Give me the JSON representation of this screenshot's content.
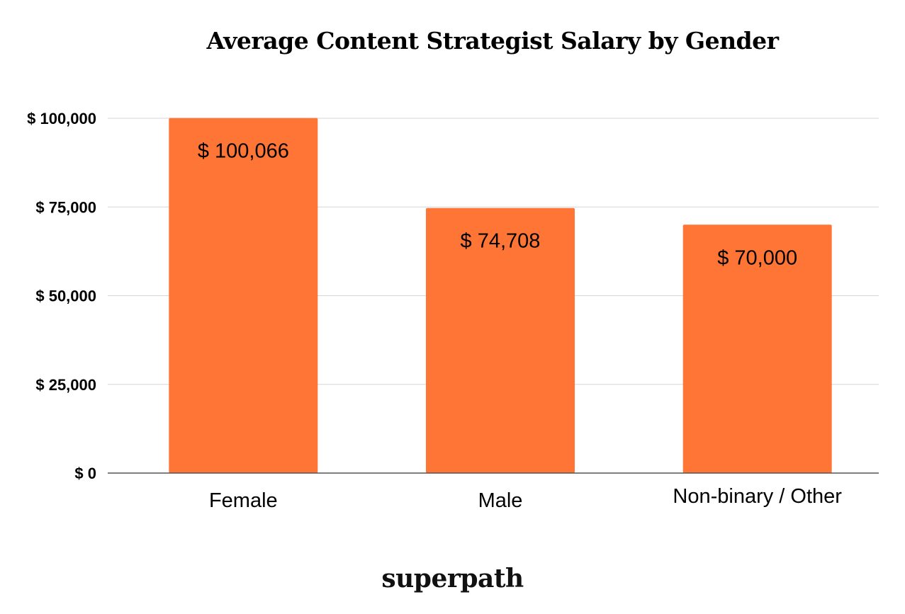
{
  "chart_data": {
    "type": "bar",
    "title": "Average Content Strategist Salary by Gender",
    "categories": [
      "Female",
      "Male",
      "Non-binary / Other"
    ],
    "values": [
      100066,
      74708,
      70000
    ],
    "data_labels": [
      "$ 100,066",
      "$ 74,708",
      "$ 70,000"
    ],
    "xlabel": "",
    "ylabel": "",
    "ylim": [
      0,
      100000
    ],
    "yticks": [
      0,
      25000,
      50000,
      75000,
      100000
    ],
    "ytick_labels": [
      "$ 0",
      "$ 25,000",
      "$ 50,000",
      "$ 75,000",
      "$ 100,000"
    ],
    "grid": true,
    "bar_color": "#FF7535"
  },
  "branding": {
    "logo_text": "superpath"
  }
}
